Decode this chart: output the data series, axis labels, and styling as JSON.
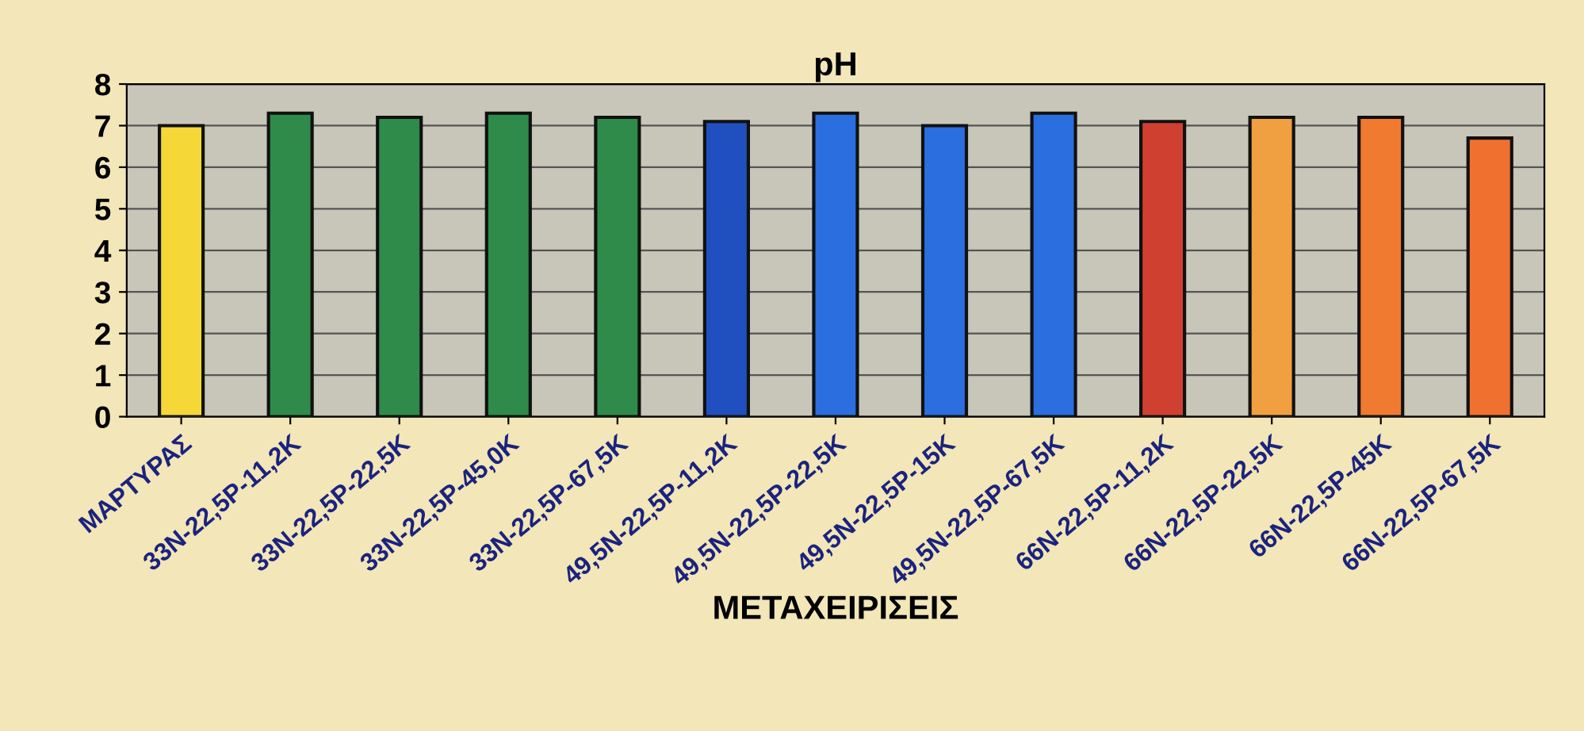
{
  "chart_data": {
    "type": "bar",
    "title": "pH",
    "xlabel": "ΜΕΤΑΧΕΙΡΙΣΕΙΣ",
    "categories": [
      "ΜΑΡΤΥΡΑΣ",
      "33N-22,5P-11,2K",
      "33N-22,5P-22,5K",
      "33N-22,5P-45,0K",
      "33N-22,5P-67,5K",
      "49,5N-22,5P-11,2K",
      "49,5N-22,5P-22,5K",
      "49,5N-22,5P-15K",
      "49,5N-22,5P-67,5K",
      "66N-22,5P-11,2K",
      "66N-22,5P-22,5K",
      "66N-22,5P-45K",
      "66N-22,5P-67,5K"
    ],
    "values": [
      7.0,
      7.3,
      7.2,
      7.3,
      7.2,
      7.1,
      7.3,
      7.0,
      7.3,
      7.1,
      7.2,
      7.2,
      6.7
    ],
    "colors": [
      "#f5d838",
      "#2e8b4a",
      "#2e8b4a",
      "#2e8b4a",
      "#2e8b4a",
      "#2050c0",
      "#2a6ee0",
      "#2a6ee0",
      "#2a6ee0",
      "#d04030",
      "#f0a040",
      "#f07a30",
      "#f07030"
    ],
    "ylim": [
      0,
      8
    ],
    "yticks": [
      0,
      1,
      2,
      3,
      4,
      5,
      6,
      7,
      8
    ],
    "grid": "y"
  }
}
